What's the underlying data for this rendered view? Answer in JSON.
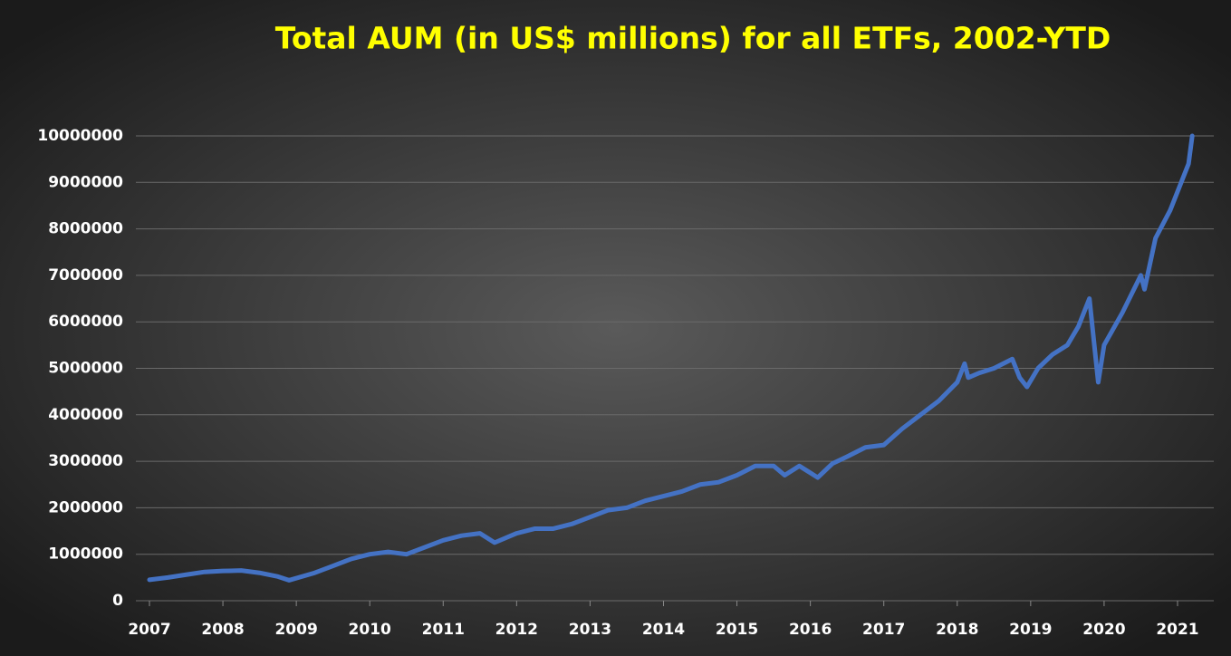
{
  "chart_data": {
    "type": "line",
    "title": "Total AUM (in US$ millions) for all ETFs, 2002-YTD",
    "xlim": [
      2007,
      2021.3
    ],
    "xticks": [
      2007,
      2008,
      2009,
      2010,
      2011,
      2012,
      2013,
      2014,
      2015,
      2016,
      2017,
      2018,
      2019,
      2020,
      2021
    ],
    "ylim": [
      0,
      10000000
    ],
    "yticks": [
      0,
      1000000,
      2000000,
      3000000,
      4000000,
      5000000,
      6000000,
      7000000,
      8000000,
      9000000,
      10000000
    ],
    "grid": true,
    "x": [
      2007,
      2007.25,
      2007.5,
      2007.75,
      2008,
      2008.25,
      2008.5,
      2008.75,
      2008.9,
      2009.25,
      2009.5,
      2009.75,
      2010,
      2010.25,
      2010.5,
      2010.75,
      2011,
      2011.25,
      2011.5,
      2011.7,
      2012,
      2012.25,
      2012.5,
      2012.75,
      2013,
      2013.25,
      2013.5,
      2013.75,
      2014,
      2014.25,
      2014.5,
      2014.75,
      2015,
      2015.25,
      2015.5,
      2015.65,
      2015.85,
      2016,
      2016.1,
      2016.3,
      2016.5,
      2016.75,
      2017,
      2017.25,
      2017.5,
      2017.75,
      2018,
      2018.1,
      2018.15,
      2018.3,
      2018.5,
      2018.75,
      2018.85,
      2018.95,
      2019.1,
      2019.3,
      2019.5,
      2019.65,
      2019.8,
      2019.92,
      2020,
      2020.25,
      2020.5,
      2020.55,
      2020.7,
      2020.9,
      2021.05,
      2021.15,
      2021.2
    ],
    "series": [
      {
        "name": "Total AUM",
        "color": "#4472c4",
        "values": [
          450000,
          500000,
          560000,
          620000,
          640000,
          650000,
          600000,
          520000,
          440000,
          600000,
          750000,
          900000,
          1000000,
          1050000,
          1000000,
          1150000,
          1300000,
          1400000,
          1450000,
          1250000,
          1450000,
          1550000,
          1550000,
          1650000,
          1800000,
          1950000,
          2000000,
          2150000,
          2250000,
          2350000,
          2500000,
          2550000,
          2700000,
          2900000,
          2900000,
          2700000,
          2900000,
          2750000,
          2650000,
          2950000,
          3100000,
          3300000,
          3350000,
          3700000,
          4000000,
          4300000,
          4700000,
          5100000,
          4800000,
          4900000,
          5000000,
          5200000,
          4800000,
          4600000,
          5000000,
          5300000,
          5500000,
          5900000,
          6500000,
          4700000,
          5500000,
          6200000,
          7000000,
          6700000,
          7800000,
          8400000,
          9000000,
          9400000,
          10000000
        ]
      }
    ]
  }
}
